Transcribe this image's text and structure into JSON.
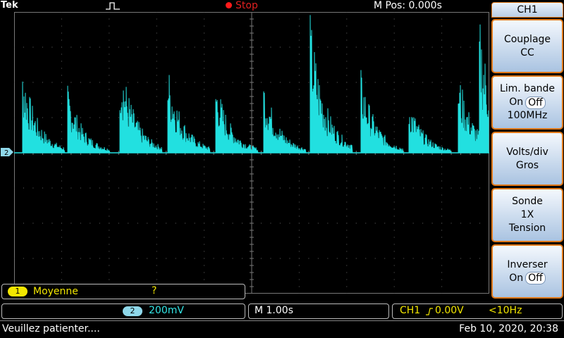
{
  "topbar": {
    "brand": "Tek",
    "run_state": "Stop",
    "m_pos": "M Pos: 0.000s"
  },
  "side_menu": {
    "title": "CH1",
    "coupling": {
      "label": "Couplage",
      "value": "CC"
    },
    "bandwidth": {
      "label": "Lim. bande",
      "on": "On",
      "off": "Off",
      "freq": "100MHz"
    },
    "volts_div": {
      "label": "Volts/div",
      "value": "Gros"
    },
    "probe": {
      "label": "Sonde",
      "value": "1X",
      "type": "Tension"
    },
    "invert": {
      "label": "Inverser",
      "on": "On",
      "off": "Off"
    }
  },
  "measurement": {
    "badge": "1",
    "label": "Moyenne",
    "value": "?"
  },
  "channel2": {
    "badge": "2",
    "scale": "200mV",
    "marker": "2"
  },
  "timebase": {
    "scale": "M 1.00s"
  },
  "trigger": {
    "source": "CH1",
    "level": "0.00V",
    "freq": "<10Hz"
  },
  "status": {
    "message": "Veuillez patienter....",
    "datetime": "Feb 10, 2020, 20:38"
  },
  "colors": {
    "trace": "#22e0e0",
    "accent": "#e07818",
    "meas": "#f2e600",
    "stop": "#e02020"
  }
}
